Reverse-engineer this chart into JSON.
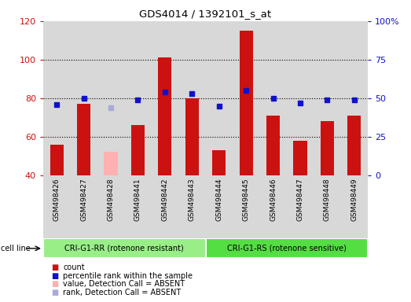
{
  "title": "GDS4014 / 1392101_s_at",
  "samples": [
    "GSM498426",
    "GSM498427",
    "GSM498428",
    "GSM498441",
    "GSM498442",
    "GSM498443",
    "GSM498444",
    "GSM498445",
    "GSM498446",
    "GSM498447",
    "GSM498448",
    "GSM498449"
  ],
  "counts": [
    56,
    77,
    null,
    66,
    101,
    80,
    53,
    115,
    71,
    58,
    68,
    71
  ],
  "counts_absent": [
    null,
    null,
    52,
    null,
    null,
    null,
    null,
    null,
    null,
    null,
    null,
    null
  ],
  "ranks": [
    46,
    50,
    null,
    49,
    54,
    53,
    45,
    55,
    50,
    47,
    49,
    49
  ],
  "ranks_absent": [
    null,
    null,
    44,
    null,
    null,
    null,
    null,
    null,
    null,
    null,
    null,
    null
  ],
  "group1_label": "CRI-G1-RR (rotenone resistant)",
  "group1_count": 6,
  "group2_label": "CRI-G1-RS (rotenone sensitive)",
  "group2_count": 6,
  "cell_line_label": "cell line",
  "ylim_left": [
    40,
    120
  ],
  "ylim_right": [
    0,
    100
  ],
  "yticks_left": [
    40,
    60,
    80,
    100,
    120
  ],
  "yticks_right": [
    0,
    25,
    50,
    75,
    100
  ],
  "bar_color_red": "#CC1111",
  "bar_color_pink": "#FFB0B0",
  "dot_color_blue": "#1111CC",
  "dot_color_lightblue": "#AAAADD",
  "group1_bg": "#99EE88",
  "group2_bg": "#55DD44",
  "tick_bg": "#D8D8D8",
  "legend_labels": [
    "count",
    "percentile rank within the sample",
    "value, Detection Call = ABSENT",
    "rank, Detection Call = ABSENT"
  ],
  "legend_colors": [
    "#CC1111",
    "#1111CC",
    "#FFB0B0",
    "#AAAADD"
  ]
}
